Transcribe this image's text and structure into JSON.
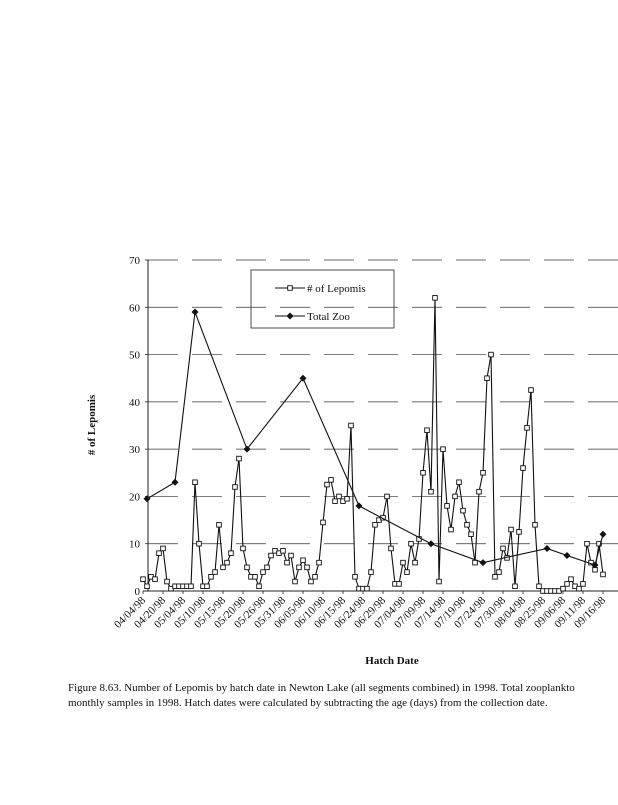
{
  "chart_data": {
    "type": "line",
    "y_label": "# of Lepomis",
    "x_label": "Hatch Date",
    "ylim": [
      0,
      70
    ],
    "yticks": [
      0,
      10,
      20,
      30,
      40,
      50,
      60,
      70
    ],
    "grid": true,
    "legend": "top",
    "categories": [
      "04/04/98",
      null,
      null,
      null,
      null,
      "04/20/98",
      null,
      null,
      null,
      null,
      "05/04/98",
      null,
      null,
      null,
      null,
      "05/10/98",
      null,
      null,
      null,
      null,
      "05/15/98",
      null,
      null,
      null,
      null,
      "05/20/98",
      null,
      null,
      null,
      null,
      "05/26/98",
      null,
      null,
      null,
      null,
      "05/31/98",
      null,
      null,
      null,
      null,
      "06/05/98",
      null,
      null,
      null,
      null,
      "06/10/98",
      null,
      null,
      null,
      null,
      "06/15/98",
      null,
      null,
      null,
      null,
      "06/24/98",
      null,
      null,
      null,
      null,
      "06/29/98",
      null,
      null,
      null,
      null,
      "07/04/98",
      null,
      null,
      null,
      null,
      "07/09/98",
      null,
      null,
      null,
      null,
      "07/14/98",
      null,
      null,
      null,
      null,
      "07/19/98",
      null,
      null,
      null,
      null,
      "07/24/98",
      null,
      null,
      null,
      null,
      "07/30/98",
      null,
      null,
      null,
      null,
      "08/04/98",
      null,
      null,
      null,
      null,
      "08/25/98",
      null,
      null,
      null,
      null,
      "09/06/98",
      null,
      null,
      null,
      null,
      "09/11/98",
      null,
      null,
      null,
      null,
      "09/16/98"
    ],
    "series": [
      {
        "name": "# of Lepomis",
        "color": "#111111",
        "marker": "square",
        "values": [
          2.5,
          1,
          3,
          2.5,
          8,
          9,
          2,
          0.5,
          1,
          1,
          1,
          1,
          1,
          23,
          10,
          1,
          1,
          3,
          4,
          14,
          5,
          6,
          8,
          22,
          28,
          9,
          5,
          3,
          3,
          1,
          4,
          5,
          7.5,
          8.5,
          8,
          8.5,
          6,
          7.5,
          2,
          5,
          6.5,
          5,
          2,
          3,
          6,
          14.5,
          22.5,
          23.5,
          19,
          20,
          19,
          19.5,
          35,
          3,
          0.5,
          0.5,
          0.5,
          4,
          14,
          15,
          15.5,
          20,
          9,
          1.5,
          1.5,
          6,
          4,
          10,
          6,
          11,
          25,
          34,
          21,
          62,
          2,
          30,
          18,
          13,
          20,
          23,
          17,
          14,
          12,
          6,
          21,
          25,
          45,
          50,
          3,
          4,
          9,
          7,
          13,
          1,
          12.5,
          26,
          34.5,
          42.5,
          14,
          1,
          0,
          0,
          0,
          0,
          0,
          0.5,
          1.5,
          2.5,
          1,
          0.5,
          1.5,
          10,
          6,
          4.5,
          10,
          3.5
        ]
      },
      {
        "name": "Total Zoo",
        "color": "#111111",
        "marker": "diamond",
        "values": [
          null,
          19.5,
          null,
          null,
          null,
          null,
          null,
          null,
          23,
          null,
          null,
          null,
          null,
          59,
          null,
          null,
          null,
          null,
          null,
          null,
          null,
          null,
          null,
          null,
          null,
          null,
          30,
          null,
          null,
          null,
          null,
          null,
          null,
          null,
          null,
          null,
          null,
          null,
          null,
          null,
          45,
          null,
          null,
          null,
          null,
          null,
          null,
          null,
          null,
          null,
          null,
          null,
          null,
          null,
          18,
          null,
          null,
          null,
          null,
          null,
          null,
          null,
          null,
          null,
          null,
          null,
          null,
          null,
          null,
          null,
          null,
          null,
          10,
          null,
          null,
          null,
          null,
          null,
          null,
          null,
          null,
          null,
          null,
          null,
          null,
          6,
          null,
          null,
          null,
          null,
          null,
          null,
          null,
          null,
          null,
          null,
          null,
          null,
          null,
          null,
          null,
          9,
          null,
          null,
          null,
          null,
          7.5,
          null,
          null,
          null,
          null,
          null,
          null,
          5.5,
          null,
          12
        ]
      }
    ]
  },
  "caption": [
    "Figure 8.63.  Number of Lepomis by hatch date in Newton Lake (all segments combined) in 1998.  Total zooplankto",
    "monthly samples in 1998.  Hatch dates were calculated by subtracting the age (days) from the collection date."
  ]
}
